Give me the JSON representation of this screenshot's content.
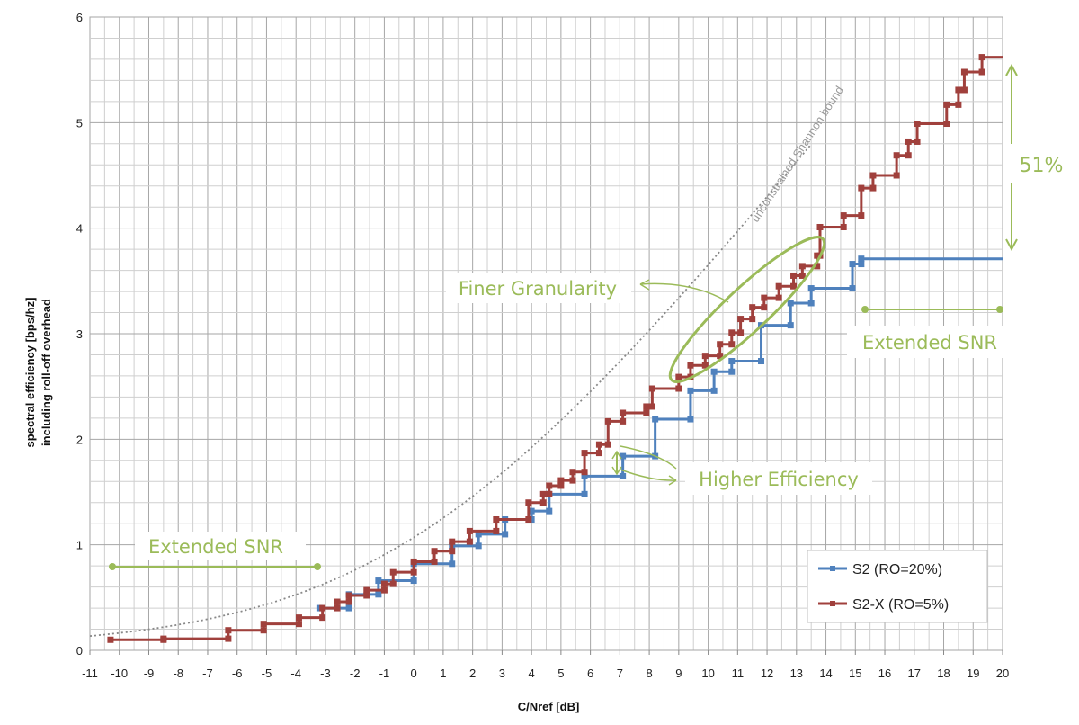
{
  "chart_data": {
    "type": "line",
    "xlabel": "C/Nref [dB]",
    "ylabel_line1": "spectral efficiency  [bps/hz]",
    "ylabel_line2": "including roll-off overhead",
    "xlim": [
      -11,
      20
    ],
    "ylim": [
      0,
      6
    ],
    "x_ticks": [
      -11,
      -10,
      -9,
      -8,
      -7,
      -6,
      -5,
      -4,
      -3,
      -2,
      -1,
      0,
      1,
      2,
      3,
      4,
      5,
      6,
      7,
      8,
      9,
      10,
      11,
      12,
      13,
      14,
      15,
      16,
      17,
      18,
      19,
      20
    ],
    "y_ticks": [
      0,
      1,
      2,
      3,
      4,
      5,
      6
    ],
    "grid": true,
    "minor_x_step": 0.5,
    "minor_y_step": 0.2,
    "legend_position": "bottom-right",
    "series": [
      {
        "name": "S2 (RO=20%)",
        "color": "#4f81bd",
        "points": [
          [
            -3.2,
            0.4
          ],
          [
            -2.2,
            0.53
          ],
          [
            -1.2,
            0.66
          ],
          [
            0.0,
            0.82
          ],
          [
            1.3,
            0.99
          ],
          [
            2.2,
            1.1
          ],
          [
            3.1,
            1.24
          ],
          [
            4.0,
            1.32
          ],
          [
            4.6,
            1.48
          ],
          [
            5.8,
            1.65
          ],
          [
            7.1,
            1.84
          ],
          [
            8.2,
            2.19
          ],
          [
            9.4,
            2.46
          ],
          [
            10.2,
            2.64
          ],
          [
            10.8,
            2.74
          ],
          [
            11.8,
            3.08
          ],
          [
            12.8,
            3.29
          ],
          [
            13.5,
            3.43
          ],
          [
            14.9,
            3.66
          ],
          [
            15.2,
            3.71
          ],
          [
            20.0,
            3.71
          ]
        ]
      },
      {
        "name": "S2-X (RO=5%)",
        "color": "#a0403c",
        "points": [
          [
            -10.3,
            0.1
          ],
          [
            -8.5,
            0.11
          ],
          [
            -6.3,
            0.19
          ],
          [
            -5.1,
            0.25
          ],
          [
            -3.9,
            0.31
          ],
          [
            -3.1,
            0.4
          ],
          [
            -2.6,
            0.46
          ],
          [
            -2.2,
            0.52
          ],
          [
            -1.6,
            0.57
          ],
          [
            -1.0,
            0.63
          ],
          [
            -0.7,
            0.74
          ],
          [
            -0.0,
            0.84
          ],
          [
            0.7,
            0.94
          ],
          [
            1.3,
            1.03
          ],
          [
            1.9,
            1.13
          ],
          [
            2.8,
            1.24
          ],
          [
            3.9,
            1.4
          ],
          [
            4.4,
            1.48
          ],
          [
            4.6,
            1.56
          ],
          [
            5.0,
            1.61
          ],
          [
            5.4,
            1.69
          ],
          [
            5.8,
            1.87
          ],
          [
            6.3,
            1.95
          ],
          [
            6.6,
            2.17
          ],
          [
            7.1,
            2.25
          ],
          [
            7.9,
            2.31
          ],
          [
            8.1,
            2.48
          ],
          [
            9.0,
            2.59
          ],
          [
            9.4,
            2.7
          ],
          [
            9.9,
            2.79
          ],
          [
            10.4,
            2.9
          ],
          [
            10.8,
            3.01
          ],
          [
            11.1,
            3.14
          ],
          [
            11.5,
            3.25
          ],
          [
            11.9,
            3.34
          ],
          [
            12.4,
            3.45
          ],
          [
            12.9,
            3.55
          ],
          [
            13.2,
            3.64
          ],
          [
            13.7,
            3.74
          ],
          [
            13.8,
            4.01
          ],
          [
            14.6,
            4.12
          ],
          [
            15.2,
            4.38
          ],
          [
            15.6,
            4.5
          ],
          [
            16.4,
            4.69
          ],
          [
            16.8,
            4.82
          ],
          [
            17.1,
            4.99
          ],
          [
            18.1,
            5.17
          ],
          [
            18.5,
            5.31
          ],
          [
            18.7,
            5.48
          ],
          [
            19.3,
            5.62
          ],
          [
            20.0,
            5.62
          ]
        ]
      }
    ],
    "reference_curve": {
      "label": "unconstrained Shannon bound",
      "color": "#888888"
    },
    "annotations": {
      "finer_granularity": "Finer Granularity",
      "higher_efficiency": "Higher Efficiency",
      "extended_snr_left": "Extended SNR",
      "extended_snr_right": "Extended SNR",
      "percent_gain": "51%",
      "accent_color": "#9bbb59"
    }
  }
}
